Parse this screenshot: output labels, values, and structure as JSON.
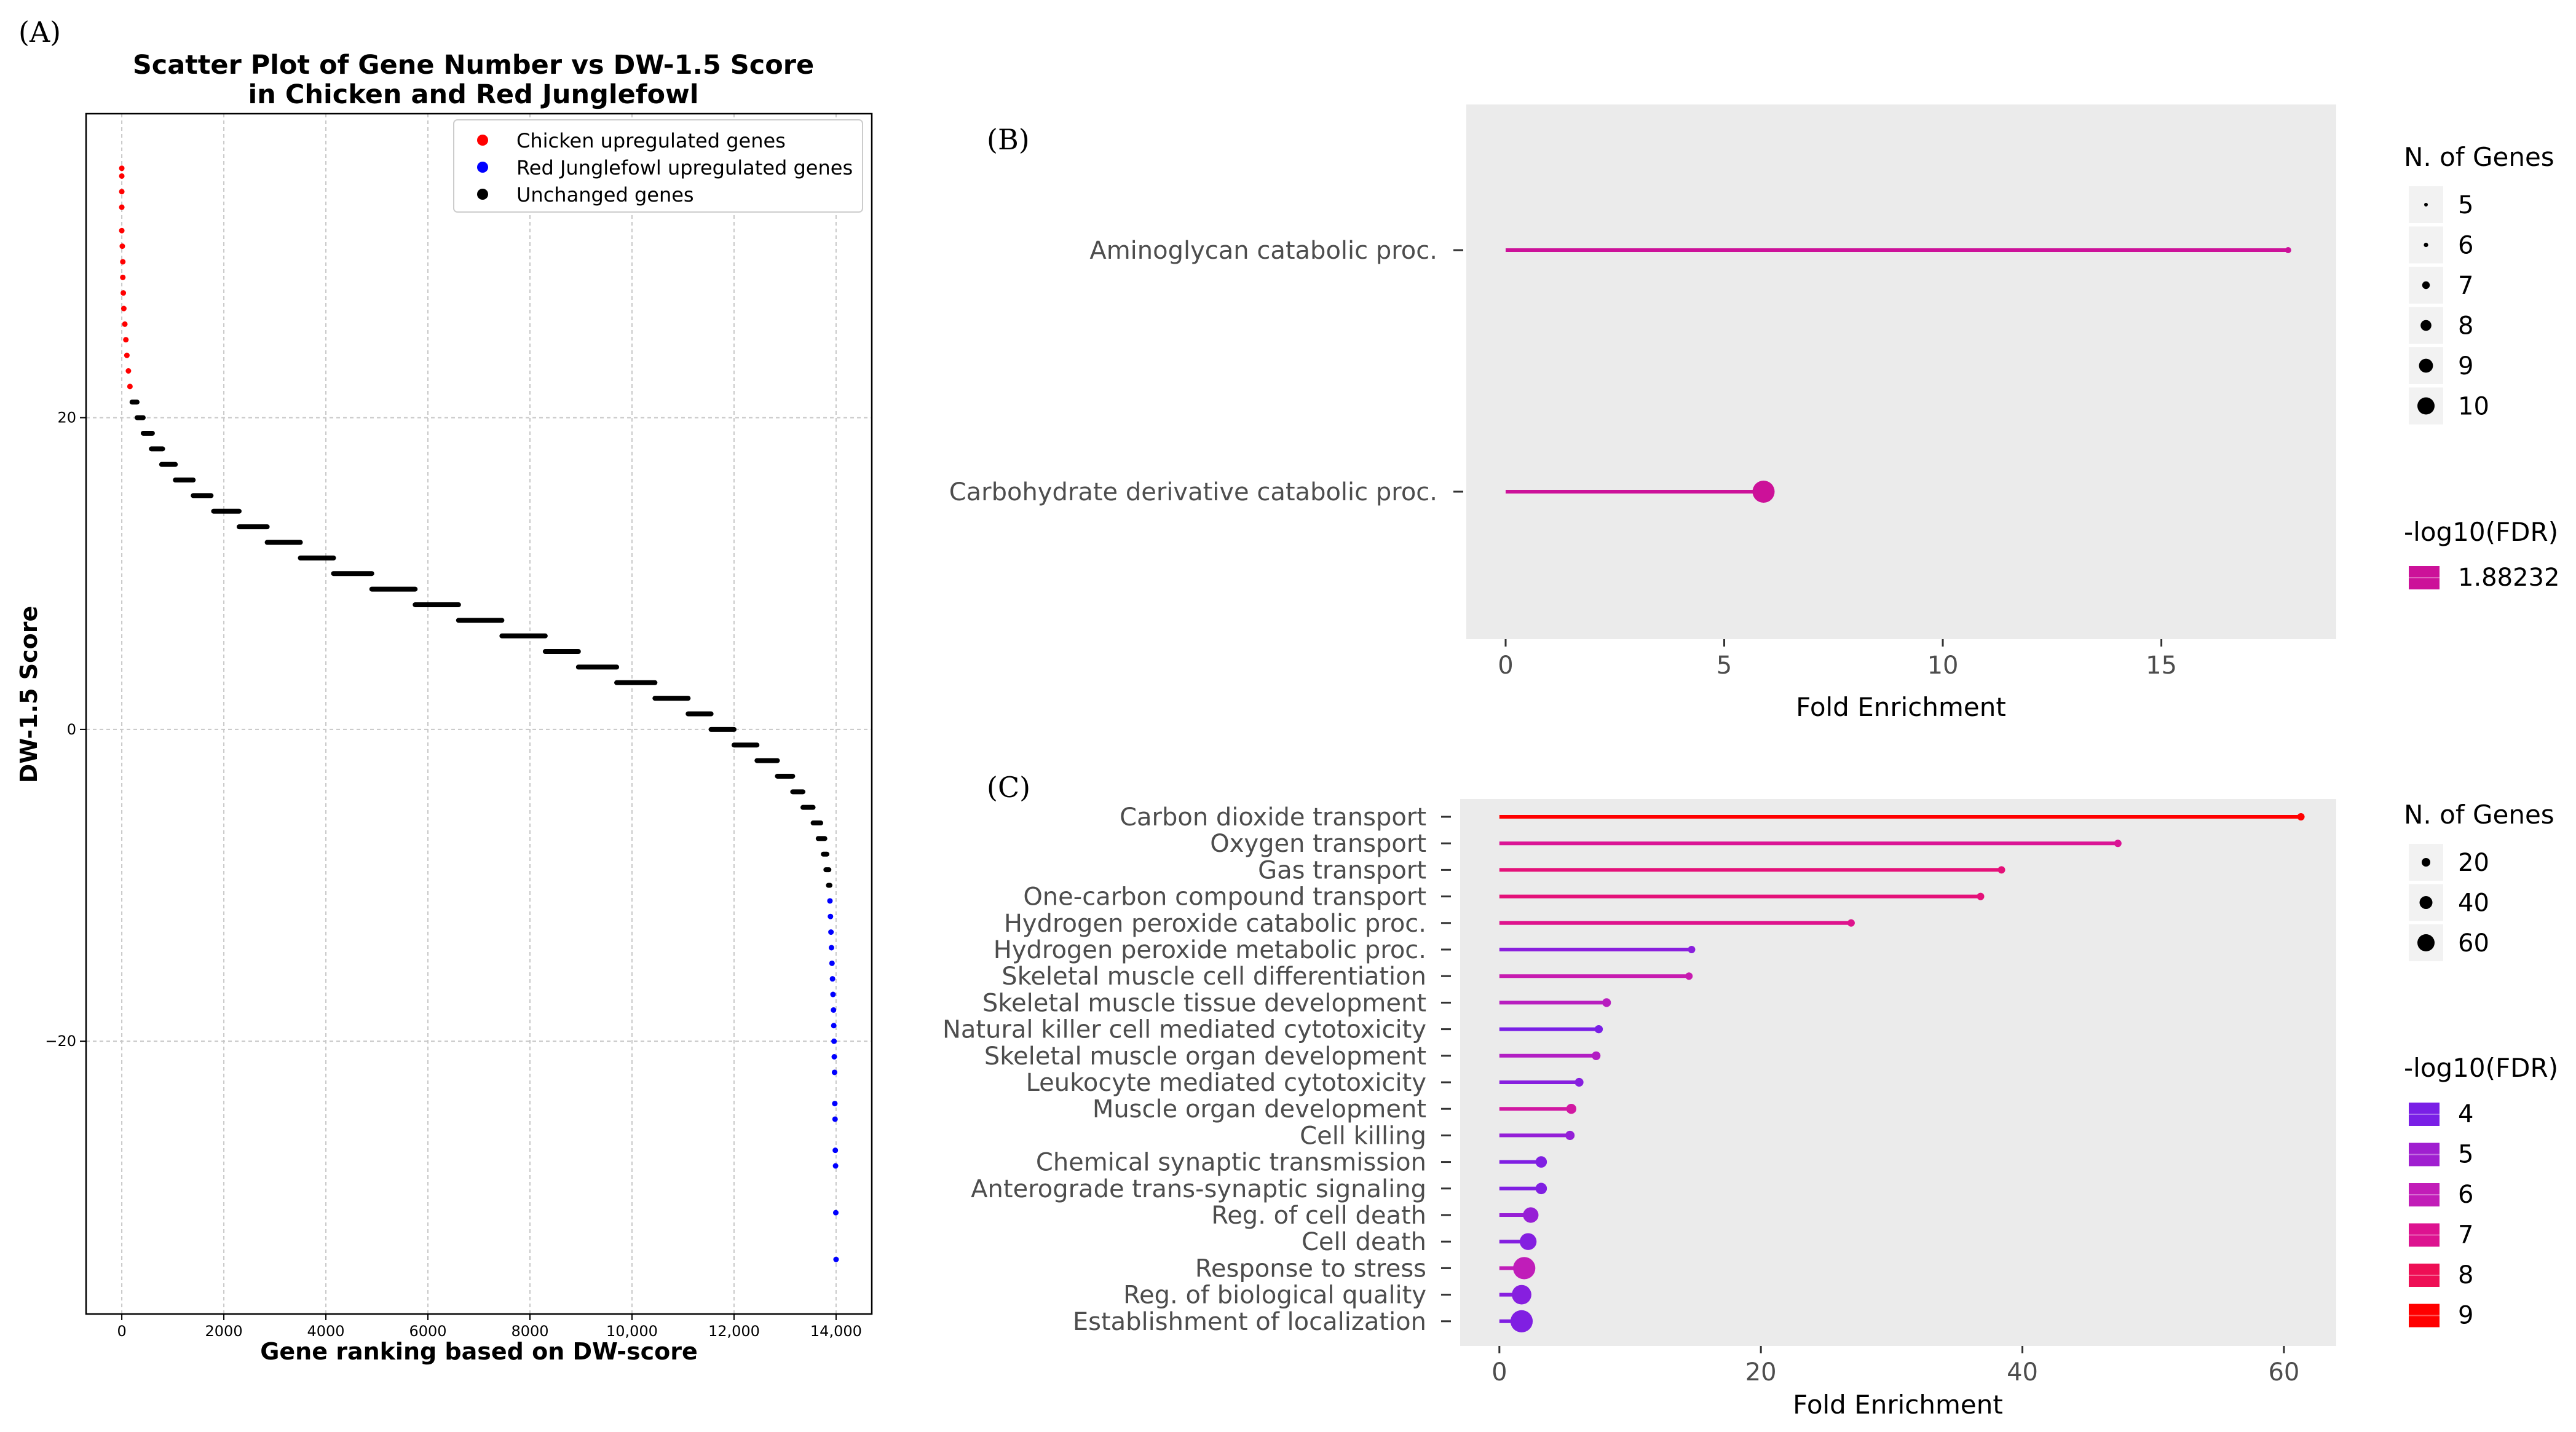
{
  "panels": [
    {
      "label": "(A)"
    },
    {
      "label": "(B)"
    },
    {
      "label": "(C)"
    }
  ],
  "colors": {
    "chicken_up": "#ff0000",
    "junglefowl_up": "#0000ff",
    "unchanged": "#000000",
    "panel_bg": "#ebebeb",
    "gradient": [
      "#7a1fe6",
      "#a01fd0",
      "#c21db8",
      "#dd1390",
      "#ee0f55",
      "#ff0000"
    ]
  },
  "chart_data": [
    {
      "id": "A",
      "type": "scatter",
      "title": "Scatter Plot of Gene Number vs DW-1.5 Score\nin Chicken and Red Junglefowl",
      "xlabel": "Gene ranking based on DW-score",
      "ylabel": "DW-1.5 Score",
      "xlim": [
        -700,
        14700
      ],
      "ylim": [
        -37.5,
        39.5
      ],
      "xticks": [
        0,
        2000,
        4000,
        6000,
        8000,
        10000,
        12000,
        14000
      ],
      "xtick_labels": [
        "0",
        "2000",
        "4000",
        "6000",
        "8000",
        "10,000",
        "12,000",
        "14,000"
      ],
      "yticks": [
        20,
        0,
        -20
      ],
      "ytick_labels": [
        "20",
        "0",
        "−20"
      ],
      "grid": true,
      "legend_position": "top-right",
      "legend": [
        "Chicken upregulated genes",
        "Red Junglefowl upregulated genes",
        "Unchanged genes"
      ],
      "series": [
        {
          "name": "Chicken upregulated genes",
          "color": "#ff0000",
          "points": [
            [
              0,
              36
            ],
            [
              0,
              35.5
            ],
            [
              0,
              34.5
            ],
            [
              0,
              33.5
            ],
            [
              0,
              32
            ],
            [
              10,
              31
            ],
            [
              20,
              30
            ],
            [
              20,
              29
            ],
            [
              30,
              28
            ],
            [
              40,
              27
            ],
            [
              60,
              26
            ],
            [
              80,
              25
            ],
            [
              100,
              24
            ],
            [
              130,
              23
            ],
            [
              160,
              22
            ]
          ]
        },
        {
          "name": "Red Junglefowl upregulated genes",
          "color": "#0000ff",
          "points": [
            [
              13880,
              -11
            ],
            [
              13890,
              -12
            ],
            [
              13900,
              -13
            ],
            [
              13910,
              -14
            ],
            [
              13920,
              -15
            ],
            [
              13930,
              -16
            ],
            [
              13940,
              -17
            ],
            [
              13950,
              -18
            ],
            [
              13955,
              -19
            ],
            [
              13960,
              -20
            ],
            [
              13965,
              -21
            ],
            [
              13970,
              -22
            ],
            [
              13975,
              -24
            ],
            [
              13980,
              -25
            ],
            [
              13985,
              -27
            ],
            [
              13990,
              -28
            ],
            [
              13995,
              -31
            ],
            [
              14000,
              -34
            ]
          ]
        },
        {
          "name": "Unchanged genes",
          "color": "#000000",
          "steps": [
            [
              21,
              200,
              300
            ],
            [
              20,
              300,
              420
            ],
            [
              19,
              420,
              600
            ],
            [
              18,
              580,
              800
            ],
            [
              17,
              780,
              1050
            ],
            [
              16,
              1050,
              1400
            ],
            [
              15,
              1400,
              1750
            ],
            [
              14,
              1800,
              2300
            ],
            [
              13,
              2300,
              2850
            ],
            [
              12,
              2850,
              3500
            ],
            [
              11,
              3500,
              4150
            ],
            [
              10,
              4150,
              4900
            ],
            [
              9,
              4900,
              5750
            ],
            [
              8,
              5750,
              6600
            ],
            [
              7,
              6600,
              7450
            ],
            [
              6,
              7450,
              8300
            ],
            [
              5,
              8300,
              8950
            ],
            [
              4,
              8950,
              9700
            ],
            [
              3,
              9700,
              10450
            ],
            [
              2,
              10450,
              11100
            ],
            [
              1,
              11100,
              11550
            ],
            [
              0,
              11550,
              12000
            ],
            [
              -1,
              12000,
              12450
            ],
            [
              -2,
              12450,
              12850
            ],
            [
              -3,
              12850,
              13150
            ],
            [
              -4,
              13150,
              13350
            ],
            [
              -5,
              13350,
              13550
            ],
            [
              -6,
              13550,
              13700
            ],
            [
              -7,
              13650,
              13780
            ],
            [
              -8,
              13750,
              13820
            ],
            [
              -9,
              13800,
              13860
            ],
            [
              -10,
              13850,
              13880
            ]
          ]
        }
      ]
    },
    {
      "id": "B",
      "type": "lollipop",
      "xlabel": "Fold Enrichment",
      "xlim": [
        -0.9,
        19.0
      ],
      "xticks": [
        0,
        5,
        10,
        15
      ],
      "categories": [
        "Aminoglycan catabolic proc.",
        "Carbohydrate derivative catabolic proc."
      ],
      "values": [
        17.9,
        5.9
      ],
      "n_genes": [
        5,
        10
      ],
      "neg_log10_fdr": [
        1.88232,
        1.88232
      ],
      "size_legend_title": "N. of Genes",
      "size_legend_values": [
        5,
        6,
        7,
        8,
        9,
        10
      ],
      "color_legend_title": "-log10(FDR)",
      "color_legend_values": [
        "1.88232"
      ]
    },
    {
      "id": "C",
      "type": "lollipop",
      "xlabel": "Fold Enrichment",
      "xlim": [
        -3,
        64
      ],
      "xticks": [
        0,
        20,
        40,
        60
      ],
      "categories": [
        "Carbon dioxide transport",
        "Oxygen transport",
        "Gas transport",
        "One-carbon compound transport",
        "Hydrogen peroxide catabolic proc.",
        "Hydrogen peroxide metabolic proc.",
        "Skeletal muscle cell differentiation",
        "Skeletal muscle tissue development",
        "Natural killer cell mediated cytotoxicity",
        "Skeletal muscle organ development",
        "Leukocyte mediated cytotoxicity",
        "Muscle organ development",
        "Cell killing",
        "Chemical synaptic transmission",
        "Anterograde trans-synaptic signaling",
        "Reg. of cell death",
        "Cell death",
        "Response to stress",
        "Reg. of biological quality",
        "Establishment of localization"
      ],
      "values": [
        61.3,
        47.3,
        38.4,
        36.8,
        26.9,
        14.7,
        14.5,
        8.2,
        7.6,
        7.4,
        6.1,
        5.5,
        5.4,
        3.2,
        3.2,
        2.4,
        2.2,
        1.9,
        1.7,
        1.7
      ],
      "n_genes": [
        5,
        5,
        5,
        5,
        5,
        5,
        5,
        10,
        8,
        10,
        10,
        15,
        12,
        20,
        20,
        35,
        40,
        60,
        50,
        60
      ],
      "neg_log10_fdr": [
        9.1,
        6.6,
        7.2,
        7.2,
        6.8,
        3.7,
        5.8,
        5.2,
        3.2,
        5.0,
        3.6,
        6.2,
        4.0,
        3.4,
        3.4,
        4.1,
        3.5,
        5.5,
        3.6,
        3.4
      ],
      "size_legend_title": "N. of Genes",
      "size_legend_values": [
        20,
        40,
        60
      ],
      "color_legend_title": "-log10(FDR)",
      "color_legend_values": [
        4,
        5,
        6,
        7,
        8,
        9
      ]
    }
  ]
}
